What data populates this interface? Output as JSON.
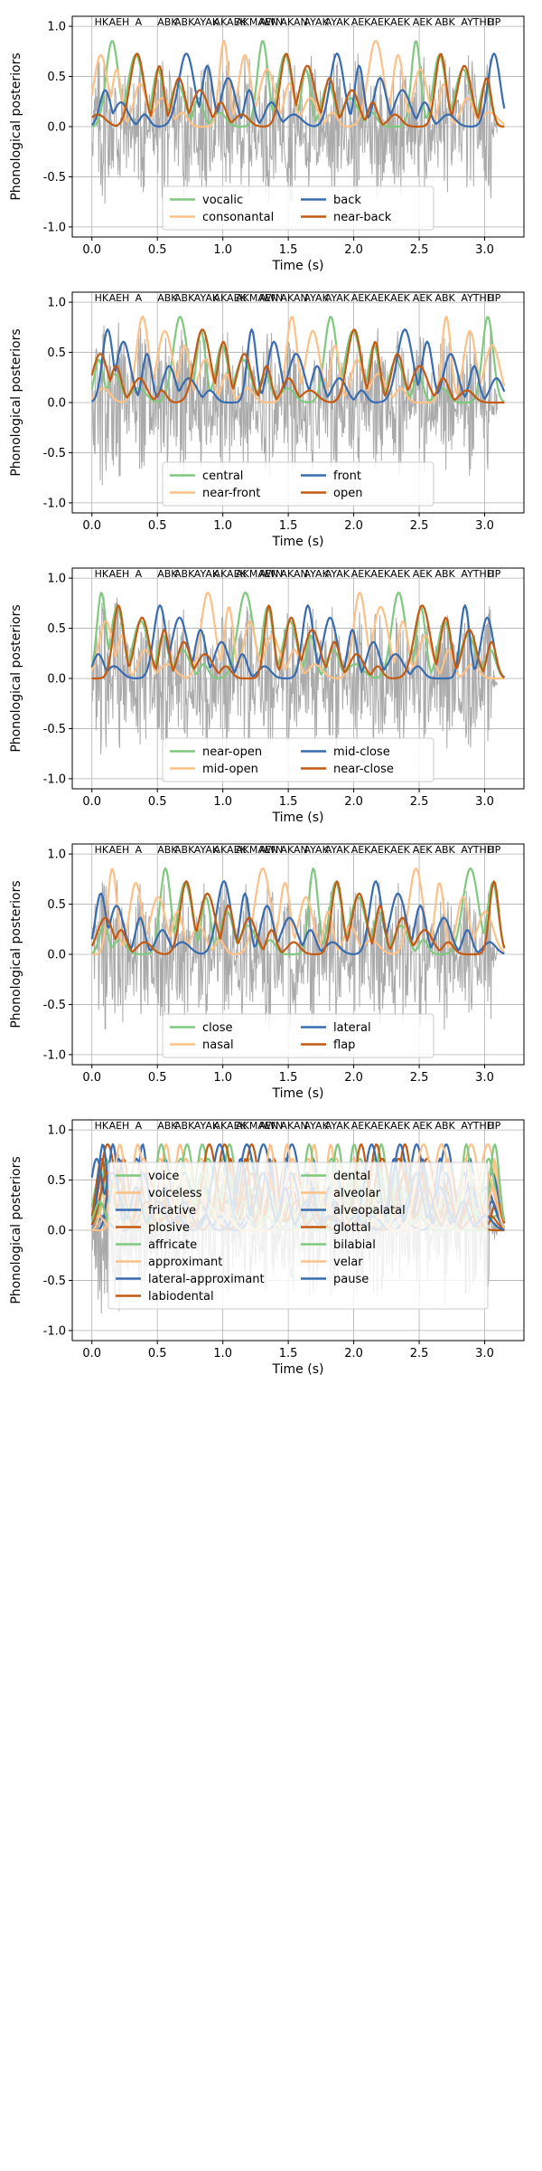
{
  "figure": {
    "colors": [
      "#7fc97f",
      "#fdc086",
      "#386cb0",
      "#c45a12"
    ],
    "waveform_color": "#aaaaaa",
    "grid": true
  },
  "chart_data": [
    {
      "type": "line",
      "xlabel": "Time (s)",
      "ylabel": "Phonological posteriors",
      "xlim": [
        -0.15,
        3.3
      ],
      "ylim": [
        -1.1,
        1.1
      ],
      "xticks": [
        "0.0",
        "0.5",
        "1.0",
        "1.5",
        "2.0",
        "2.5",
        "3.0"
      ],
      "yticks": [
        "-1.0",
        "-0.5",
        "0.0",
        "0.5",
        "1.0"
      ],
      "phone_labels": [
        "HK",
        "AEH",
        "A",
        "ABK",
        "ABK",
        "AYAK",
        "AKAEK",
        "AKMAEN",
        "AWN",
        "AKAN",
        "AYAK",
        "AYAK",
        "AEK",
        "AEK",
        "AEK",
        "AEK",
        "ABK",
        "AYTHD",
        "HP"
      ],
      "legend": {
        "ncol": 2,
        "placement": "lower center"
      },
      "series": [
        {
          "name": "vocalic",
          "color_index": 0
        },
        {
          "name": "consonantal",
          "color_index": 1
        },
        {
          "name": "back",
          "color_index": 2
        },
        {
          "name": "near-back",
          "color_index": 3
        }
      ]
    },
    {
      "type": "line",
      "xlabel": "Time (s)",
      "ylabel": "Phonological posteriors",
      "xlim": [
        -0.15,
        3.3
      ],
      "ylim": [
        -1.1,
        1.1
      ],
      "xticks": [
        "0.0",
        "0.5",
        "1.0",
        "1.5",
        "2.0",
        "2.5",
        "3.0"
      ],
      "yticks": [
        "-1.0",
        "-0.5",
        "0.0",
        "0.5",
        "1.0"
      ],
      "phone_labels": [
        "HK",
        "AEH",
        "A",
        "ABK",
        "ABK",
        "AYAK",
        "AKAEK",
        "AKMAEN",
        "AWN",
        "AKAN",
        "AYAK",
        "AYAK",
        "AEK",
        "AEK",
        "AEK",
        "AEK",
        "ABK",
        "AYTHD",
        "HP"
      ],
      "legend": {
        "ncol": 2,
        "placement": "lower center"
      },
      "series": [
        {
          "name": "central",
          "color_index": 0
        },
        {
          "name": "near-front",
          "color_index": 1
        },
        {
          "name": "front",
          "color_index": 2
        },
        {
          "name": "open",
          "color_index": 3
        }
      ]
    },
    {
      "type": "line",
      "xlabel": "Time (s)",
      "ylabel": "Phonological posteriors",
      "xlim": [
        -0.15,
        3.3
      ],
      "ylim": [
        -1.1,
        1.1
      ],
      "xticks": [
        "0.0",
        "0.5",
        "1.0",
        "1.5",
        "2.0",
        "2.5",
        "3.0"
      ],
      "yticks": [
        "-1.0",
        "-0.5",
        "0.0",
        "0.5",
        "1.0"
      ],
      "phone_labels": [
        "HK",
        "AEH",
        "A",
        "ABK",
        "ABK",
        "AYAK",
        "AKAEK",
        "AKMAEN",
        "AWN",
        "AKAN",
        "AYAK",
        "AYAK",
        "AEK",
        "AEK",
        "AEK",
        "AEK",
        "ABK",
        "AYTHD",
        "HP"
      ],
      "legend": {
        "ncol": 2,
        "placement": "lower center"
      },
      "series": [
        {
          "name": "near-open",
          "color_index": 0
        },
        {
          "name": "mid-open",
          "color_index": 1
        },
        {
          "name": "mid-close",
          "color_index": 2
        },
        {
          "name": "near-close",
          "color_index": 3
        }
      ]
    },
    {
      "type": "line",
      "xlabel": "Time (s)",
      "ylabel": "Phonological posteriors",
      "xlim": [
        -0.15,
        3.3
      ],
      "ylim": [
        -1.1,
        1.1
      ],
      "xticks": [
        "0.0",
        "0.5",
        "1.0",
        "1.5",
        "2.0",
        "2.5",
        "3.0"
      ],
      "yticks": [
        "-1.0",
        "-0.5",
        "0.0",
        "0.5",
        "1.0"
      ],
      "phone_labels": [
        "HK",
        "AEH",
        "A",
        "ABK",
        "ABK",
        "AYAK",
        "AKAEK",
        "AKMAEN",
        "AWN",
        "AKAN",
        "AYAK",
        "AYAK",
        "AEK",
        "AEK",
        "AEK",
        "AEK",
        "ABK",
        "AYTHD",
        "HP"
      ],
      "legend": {
        "ncol": 2,
        "placement": "lower center"
      },
      "series": [
        {
          "name": "close",
          "color_index": 0
        },
        {
          "name": "nasal",
          "color_index": 1
        },
        {
          "name": "lateral",
          "color_index": 2
        },
        {
          "name": "flap",
          "color_index": 3
        }
      ]
    },
    {
      "type": "line",
      "xlabel": "Time (s)",
      "ylabel": "Phonological posteriors",
      "xlim": [
        -0.15,
        3.3
      ],
      "ylim": [
        -1.1,
        1.1
      ],
      "xticks": [
        "0.0",
        "0.5",
        "1.0",
        "1.5",
        "2.0",
        "2.5",
        "3.0"
      ],
      "yticks": [
        "-1.0",
        "-0.5",
        "0.0",
        "0.5",
        "1.0"
      ],
      "phone_labels": [
        "HK",
        "AEH",
        "A",
        "ABK",
        "ABK",
        "AYAK",
        "AKAEK",
        "AKMAEN",
        "AWN",
        "AKAN",
        "AYAK",
        "AYAK",
        "AEK",
        "AEK",
        "AEK",
        "AEK",
        "ABK",
        "AYTHD",
        "HP"
      ],
      "legend": {
        "ncol": 2,
        "placement": "center"
      },
      "series": [
        {
          "name": "voice",
          "color_index": 0
        },
        {
          "name": "voiceless",
          "color_index": 1
        },
        {
          "name": "fricative",
          "color_index": 2
        },
        {
          "name": "plosive",
          "color_index": 3
        },
        {
          "name": "affricate",
          "color_index": 0
        },
        {
          "name": "approximant",
          "color_index": 1
        },
        {
          "name": "lateral-approximant",
          "color_index": 2
        },
        {
          "name": "labiodental",
          "color_index": 3
        },
        {
          "name": "dental",
          "color_index": 0
        },
        {
          "name": "alveolar",
          "color_index": 1
        },
        {
          "name": "alveopalatal",
          "color_index": 2
        },
        {
          "name": "glottal",
          "color_index": 3
        },
        {
          "name": "bilabial",
          "color_index": 0
        },
        {
          "name": "velar",
          "color_index": 1
        },
        {
          "name": "pause",
          "color_index": 2
        }
      ]
    }
  ]
}
